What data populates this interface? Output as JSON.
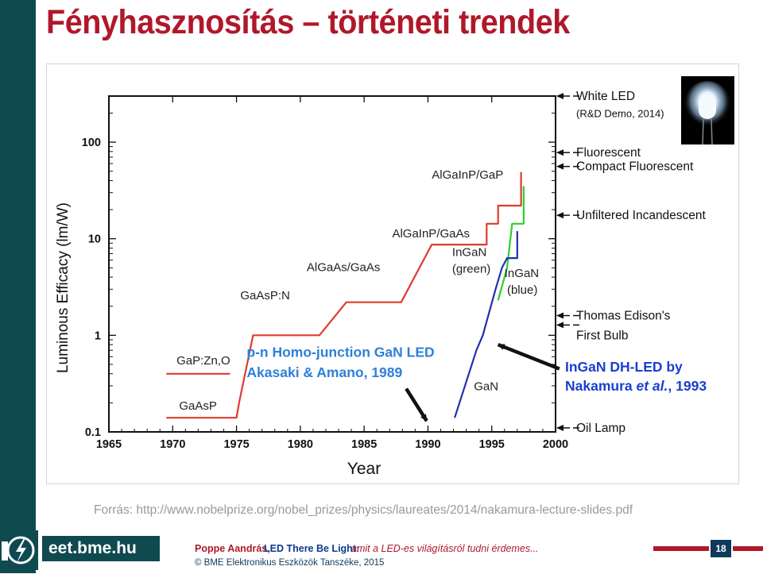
{
  "slide": {
    "title": "Fényhasznosítás – történeti trendek",
    "source": "Forrás: http://www.nobelprize.org/nobel_prizes/physics/laureates/2014/nakamura-lecture-slides.pdf",
    "footer": {
      "brand": "eet.bme.hu",
      "author": "Poppe Aandrás,",
      "talk": "LED There Be Light:",
      "subtitle": "amit a LED-es világításról tudni érdemes...",
      "copyright": "© BME Elektronikus Eszközök Tanszéke, 2015",
      "page": "18"
    }
  },
  "chart_data": {
    "type": "line",
    "title": "",
    "xlabel": "Year",
    "ylabel": "Luminous Efficacy (lm/W)",
    "xlim": [
      1965,
      2000
    ],
    "ylim": [
      0.1,
      300
    ],
    "yscale": "log",
    "x_ticks": [
      1965,
      1970,
      1975,
      1980,
      1985,
      1990,
      1995,
      2000
    ],
    "x_tick_labels": [
      "1965",
      "1970",
      "1975",
      "1980",
      "1985",
      "1990",
      "1995",
      "2000"
    ],
    "y_ticks": [
      0.1,
      1,
      10,
      100
    ],
    "y_tick_labels": [
      "0.1",
      "1",
      "10",
      "100"
    ],
    "grid": false,
    "series": [
      {
        "key": "red-leds",
        "color": "#e03a2e",
        "points": [
          [
            1969.5,
            0.14
          ],
          [
            1975,
            0.14
          ],
          [
            1975.2,
            0.2
          ],
          [
            1976.3,
            1.0
          ],
          [
            1981.5,
            1.0
          ],
          [
            1983.6,
            2.2
          ],
          [
            1987.9,
            2.2
          ],
          [
            1990.3,
            8.7
          ],
          [
            1994.6,
            8.7
          ],
          [
            1994.6,
            14.3
          ],
          [
            1995.5,
            14.3
          ],
          [
            1995.5,
            22
          ],
          [
            1997.3,
            22
          ],
          [
            1997.3,
            49
          ]
        ]
      },
      {
        "key": "gap-zn-o",
        "color": "#e03a2e",
        "points": [
          [
            1969.5,
            0.4
          ],
          [
            1974.5,
            0.4
          ]
        ]
      },
      {
        "key": "ingan-green",
        "color": "#2fcf2f",
        "points": [
          [
            1995.5,
            2.3
          ],
          [
            1996.2,
            5.0
          ],
          [
            1996.6,
            14.3
          ],
          [
            1997.5,
            14.3
          ],
          [
            1997.5,
            35
          ]
        ]
      },
      {
        "key": "ingan-blue",
        "color": "#2030b0",
        "points": [
          [
            1992.1,
            0.14
          ],
          [
            1993.8,
            0.7
          ],
          [
            1994.3,
            1.0
          ],
          [
            1995.3,
            3.0
          ],
          [
            1995.8,
            5.0
          ],
          [
            1996.2,
            6.3
          ],
          [
            1997.0,
            6.3
          ],
          [
            1997.0,
            12
          ]
        ]
      }
    ],
    "annotations": [
      {
        "text": "GaAsP",
        "x": 1970.5,
        "y": 0.17,
        "color": "#222222"
      },
      {
        "text": "GaP:Zn,O",
        "x": 1970.3,
        "y": 0.5,
        "color": "#222222"
      },
      {
        "text": "GaAsP:N",
        "x": 1975.3,
        "y": 2.35,
        "color": "#222222"
      },
      {
        "text": "AlGaAs/GaAs",
        "x": 1980.5,
        "y": 4.6,
        "color": "#222222"
      },
      {
        "text": "AlGaInP/GaAs",
        "x": 1987.2,
        "y": 10.3,
        "color": "#222222"
      },
      {
        "text": "AlGaInP/GaP",
        "x": 1990.3,
        "y": 42,
        "color": "#222222"
      },
      {
        "text": "InGaN",
        "x": 1991.9,
        "y": 6.6,
        "color": "#222222"
      },
      {
        "text": "(green)",
        "x": 1991.9,
        "y": 4.45,
        "color": "#222222"
      },
      {
        "text": "InGaN",
        "x": 1996.0,
        "y": 4.0,
        "color": "#222222"
      },
      {
        "text": "(blue)",
        "x": 1996.2,
        "y": 2.7,
        "color": "#222222"
      },
      {
        "text": "GaN",
        "x": 1993.6,
        "y": 0.27,
        "color": "#222222"
      },
      {
        "text": "p-n Homo-junction GaN LED",
        "x": 1975.8,
        "y": 0.6,
        "color": "#2f7fd8"
      },
      {
        "text": "Akasaki & Amano, 1989",
        "x": 1975.8,
        "y": 0.37,
        "color": "#2f7fd8"
      }
    ],
    "reference_labels": [
      {
        "text": "White LED",
        "y": 300,
        "bold": false
      },
      {
        "text": "(R&D Demo, 2014)",
        "y": 200,
        "bold": false
      },
      {
        "text": "Fluorescent",
        "y": 78,
        "bold": false
      },
      {
        "text": "Compact Fluorescent",
        "y": 56,
        "bold": false
      },
      {
        "text": "Unfiltered Incandescent",
        "y": 17.5,
        "bold": false
      },
      {
        "text": "Thomas Edison's",
        "y": 1.6,
        "bold": false
      },
      {
        "text": "First Bulb",
        "y": 1.0,
        "bold": false
      },
      {
        "text": "Oil Lamp",
        "y": 0.11,
        "bold": false
      }
    ],
    "callout": {
      "line1": "InGaN DH-LED by",
      "line2_prefix": "Nakamura ",
      "line2_italic": "et al.",
      "line2_suffix": ", 1993",
      "color": "#1a3fd0"
    },
    "arrows": [
      {
        "from": [
          1988.3,
          0.28
        ],
        "to": [
          1989.9,
          0.13
        ]
      },
      {
        "from": [
          2000.3,
          0.45
        ],
        "to": [
          1995.5,
          0.8
        ]
      }
    ]
  }
}
